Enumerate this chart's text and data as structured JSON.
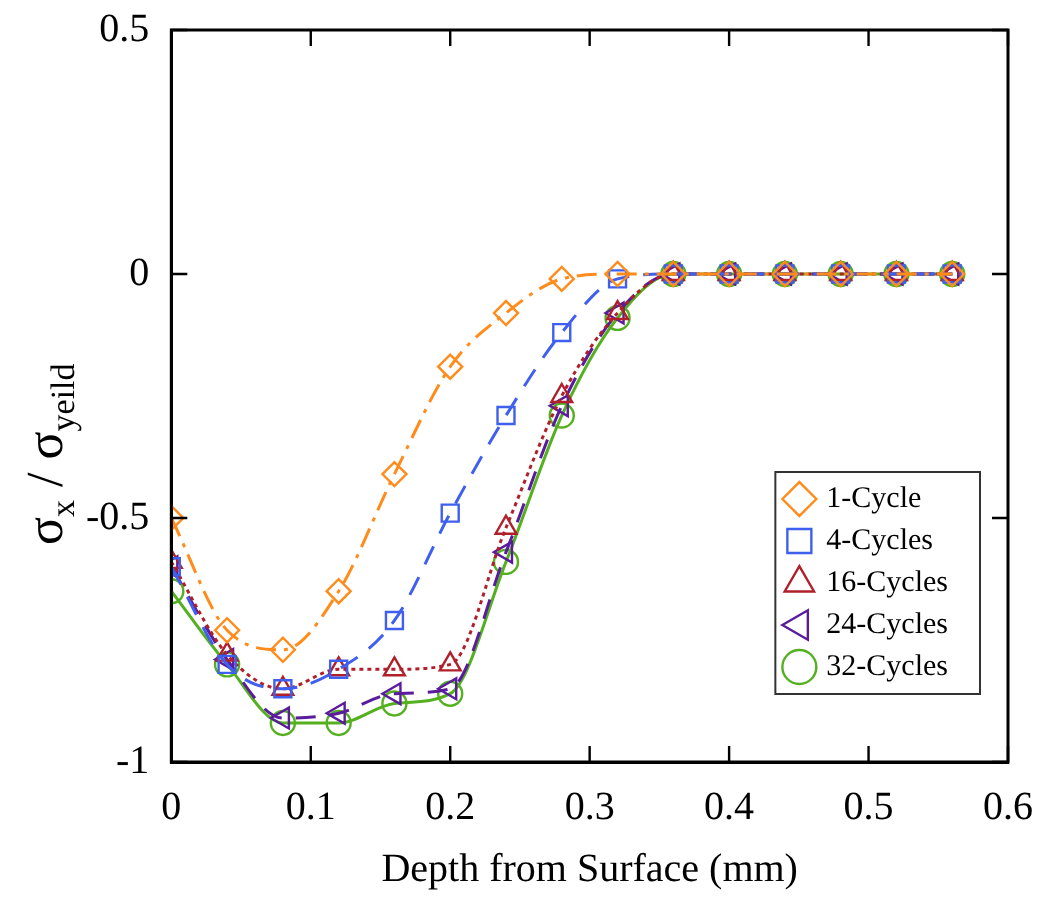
{
  "chart_data": {
    "type": "line",
    "xlabel": "Depth from Surface (mm)",
    "ylabel": "σ$_{x}$ / σ$_{yeild}$",
    "x": [
      0,
      0.04,
      0.08,
      0.12,
      0.16,
      0.2,
      0.24,
      0.28,
      0.32,
      0.36,
      0.4,
      0.44,
      0.48,
      0.52,
      0.56
    ],
    "xlim": [
      0,
      0.6
    ],
    "xticks": [
      0,
      0.1,
      0.2,
      0.3,
      0.4,
      0.5,
      0.6
    ],
    "ylim": [
      -1,
      0.5
    ],
    "yticks": [
      {
        "value": -1,
        "label": "-1"
      },
      -0.5,
      0,
      0.5
    ],
    "grid": false,
    "legend": "bottom right",
    "series": [
      {
        "name": "1-Cycle",
        "color": "#ff8c1a",
        "marker": "diamond",
        "line_style": "dashdot",
        "values": [
          -0.5,
          -0.73,
          -0.77,
          -0.65,
          -0.41,
          -0.19,
          -0.08,
          -0.01,
          0,
          0,
          0,
          0,
          0,
          0,
          0
        ]
      },
      {
        "name": "4-Cycles",
        "color": "#3f5fef",
        "marker": "square",
        "line_style": "dashed",
        "values": [
          -0.6,
          -0.8,
          -0.85,
          -0.81,
          -0.71,
          -0.49,
          -0.29,
          -0.12,
          -0.01,
          0,
          0,
          0,
          0,
          0,
          0
        ]
      },
      {
        "name": "16-Cycles",
        "color": "#b0202a",
        "marker": "triangle",
        "line_style": "dotted",
        "values": [
          -0.59,
          -0.78,
          -0.85,
          -0.81,
          -0.81,
          -0.8,
          -0.52,
          -0.25,
          -0.08,
          0,
          0,
          0,
          0,
          0,
          0
        ]
      },
      {
        "name": "24-Cycles",
        "color": "#5a1c9c",
        "marker": "triangle-left",
        "line_style": "dashed",
        "values": [
          -0.6,
          -0.79,
          -0.91,
          -0.9,
          -0.86,
          -0.85,
          -0.57,
          -0.27,
          -0.08,
          0,
          0,
          0,
          0,
          0,
          0
        ]
      },
      {
        "name": "32-Cycles",
        "color": "#55b020",
        "marker": "circle",
        "line_style": "solid",
        "values": [
          -0.65,
          -0.8,
          -0.92,
          -0.92,
          -0.88,
          -0.86,
          -0.59,
          -0.29,
          -0.09,
          0,
          0,
          0,
          0,
          0,
          0
        ]
      }
    ]
  }
}
